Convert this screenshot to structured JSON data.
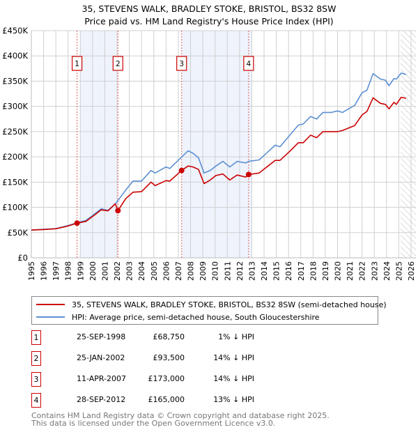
{
  "chart_data": {
    "type": "line",
    "title": "35, STEVENS WALK, BRADLEY STOKE, BRISTOL, BS32 8SW",
    "subtitle": "Price paid vs. HM Land Registry's House Price Index (HPI)",
    "xlim": [
      1995,
      2026
    ],
    "ylim": [
      0,
      450000
    ],
    "grid": true,
    "x_ticks": [
      "1995",
      "1996",
      "1997",
      "1998",
      "1999",
      "2000",
      "2001",
      "2002",
      "2003",
      "2004",
      "2005",
      "2006",
      "2007",
      "2008",
      "2009",
      "2010",
      "2011",
      "2012",
      "2013",
      "2014",
      "2015",
      "2016",
      "2017",
      "2018",
      "2019",
      "2020",
      "2021",
      "2022",
      "2023",
      "2024",
      "2025",
      "2026"
    ],
    "y_ticks": [
      {
        "value": 0,
        "label": "£0"
      },
      {
        "value": 50000,
        "label": "£50K"
      },
      {
        "value": 100000,
        "label": "£100K"
      },
      {
        "value": 150000,
        "label": "£150K"
      },
      {
        "value": 200000,
        "label": "£200K"
      },
      {
        "value": 250000,
        "label": "£250K"
      },
      {
        "value": 300000,
        "label": "£300K"
      },
      {
        "value": 350000,
        "label": "£350K"
      },
      {
        "value": 400000,
        "label": "£400K"
      },
      {
        "value": 450000,
        "label": "£450K"
      }
    ],
    "shaded_ranges": [
      [
        1999.0,
        2002.07
      ],
      [
        2007.27,
        2013.0
      ]
    ],
    "forecast_hatch_from": 2025.15,
    "colors": {
      "price": "#cc0000",
      "hpi": "#5b8fd4",
      "shade": "#eef3fc",
      "vline": "#e06060"
    },
    "series": [
      {
        "name": "35, STEVENS WALK, BRADLEY STOKE, BRISTOL, BS32 8SW (semi-detached house)",
        "key": "price",
        "points": [
          [
            1995,
            55000
          ],
          [
            1996,
            56000
          ],
          [
            1997,
            57500
          ],
          [
            1998,
            63000
          ],
          [
            1998.73,
            68750
          ],
          [
            1999.45,
            72000
          ],
          [
            2000.06,
            83000
          ],
          [
            2000.7,
            95000
          ],
          [
            2001.26,
            93000
          ],
          [
            2001.85,
            107000
          ],
          [
            2002.07,
            93500
          ],
          [
            2002.7,
            117000
          ],
          [
            2003.3,
            130000
          ],
          [
            2004.0,
            131000
          ],
          [
            2004.77,
            150000
          ],
          [
            2005.1,
            143000
          ],
          [
            2006.0,
            153000
          ],
          [
            2006.3,
            152000
          ],
          [
            2007.27,
            173000
          ],
          [
            2007.8,
            182000
          ],
          [
            2008.2,
            180000
          ],
          [
            2008.65,
            175000
          ],
          [
            2009.1,
            147000
          ],
          [
            2009.6,
            154000
          ],
          [
            2010.07,
            163000
          ],
          [
            2010.64,
            166000
          ],
          [
            2011.2,
            154000
          ],
          [
            2011.8,
            164000
          ],
          [
            2012.5,
            160000
          ],
          [
            2012.74,
            165000
          ],
          [
            2013.6,
            168000
          ],
          [
            2014.9,
            193000
          ],
          [
            2015.3,
            193000
          ],
          [
            2016.1,
            211000
          ],
          [
            2016.8,
            228000
          ],
          [
            2017.2,
            228000
          ],
          [
            2017.8,
            243000
          ],
          [
            2018.3,
            238000
          ],
          [
            2018.8,
            250000
          ],
          [
            2019.5,
            250000
          ],
          [
            2020.0,
            250000
          ],
          [
            2020.4,
            252000
          ],
          [
            2020.9,
            257000
          ],
          [
            2021.4,
            262000
          ],
          [
            2022.0,
            283000
          ],
          [
            2022.4,
            290000
          ],
          [
            2022.9,
            317000
          ],
          [
            2023.5,
            306000
          ],
          [
            2023.9,
            304000
          ],
          [
            2024.2,
            295000
          ],
          [
            2024.6,
            308000
          ],
          [
            2024.8,
            304000
          ],
          [
            2025.2,
            318000
          ],
          [
            2025.6,
            316000
          ]
        ]
      },
      {
        "name": "HPI: Average price, semi-detached house, South Gloucestershire",
        "key": "hpi",
        "points": [
          [
            1995,
            55000
          ],
          [
            1996,
            56500
          ],
          [
            1997,
            58000
          ],
          [
            1998,
            64000
          ],
          [
            1998.73,
            69500
          ],
          [
            1999.45,
            74000
          ],
          [
            2000.06,
            85000
          ],
          [
            2000.7,
            97000
          ],
          [
            2001.26,
            94000
          ],
          [
            2001.9,
            108000
          ],
          [
            2002.7,
            134000
          ],
          [
            2003.3,
            152000
          ],
          [
            2004.0,
            152000
          ],
          [
            2004.77,
            173000
          ],
          [
            2005.1,
            168000
          ],
          [
            2006.0,
            180000
          ],
          [
            2006.3,
            177000
          ],
          [
            2007.2,
            198000
          ],
          [
            2007.8,
            212000
          ],
          [
            2008.2,
            207000
          ],
          [
            2008.65,
            198000
          ],
          [
            2009.1,
            168000
          ],
          [
            2009.6,
            173000
          ],
          [
            2010.07,
            182000
          ],
          [
            2010.64,
            191000
          ],
          [
            2011.2,
            180000
          ],
          [
            2011.8,
            191000
          ],
          [
            2012.5,
            188000
          ],
          [
            2012.75,
            191000
          ],
          [
            2013.6,
            194000
          ],
          [
            2014.9,
            223000
          ],
          [
            2015.3,
            220000
          ],
          [
            2016.1,
            243000
          ],
          [
            2016.8,
            263000
          ],
          [
            2017.2,
            265000
          ],
          [
            2017.8,
            280000
          ],
          [
            2018.3,
            275000
          ],
          [
            2018.8,
            288000
          ],
          [
            2019.5,
            288000
          ],
          [
            2020.0,
            291000
          ],
          [
            2020.4,
            288000
          ],
          [
            2020.9,
            295000
          ],
          [
            2021.4,
            302000
          ],
          [
            2022.0,
            327000
          ],
          [
            2022.4,
            332000
          ],
          [
            2022.9,
            365000
          ],
          [
            2023.5,
            354000
          ],
          [
            2023.9,
            352000
          ],
          [
            2024.2,
            341000
          ],
          [
            2024.6,
            355000
          ],
          [
            2024.8,
            354000
          ],
          [
            2025.2,
            366000
          ],
          [
            2025.6,
            363000
          ]
        ]
      }
    ],
    "sales": [
      {
        "num": "1",
        "x": 1998.73,
        "value": 68750
      },
      {
        "num": "2",
        "x": 2002.07,
        "value": 93500
      },
      {
        "num": "3",
        "x": 2007.27,
        "value": 173000
      },
      {
        "num": "4",
        "x": 2012.74,
        "value": 165000
      }
    ]
  },
  "legend": {
    "price_label": "35, STEVENS WALK, BRADLEY STOKE, BRISTOL, BS32 8SW (semi-detached house)",
    "hpi_label": "HPI: Average price, semi-detached house, South Gloucestershire"
  },
  "transactions": [
    {
      "num": "1",
      "date": "25-SEP-1998",
      "price": "£68,750",
      "hpi": "1% ↓ HPI"
    },
    {
      "num": "2",
      "date": "25-JAN-2002",
      "price": "£93,500",
      "hpi": "14% ↓ HPI"
    },
    {
      "num": "3",
      "date": "11-APR-2007",
      "price": "£173,000",
      "hpi": "14% ↓ HPI"
    },
    {
      "num": "4",
      "date": "28-SEP-2012",
      "price": "£165,000",
      "hpi": "13% ↓ HPI"
    }
  ],
  "footer": {
    "line1": "Contains HM Land Registry data © Crown copyright and database right 2025.",
    "line2": "This data is licensed under the Open Government Licence v3.0."
  }
}
